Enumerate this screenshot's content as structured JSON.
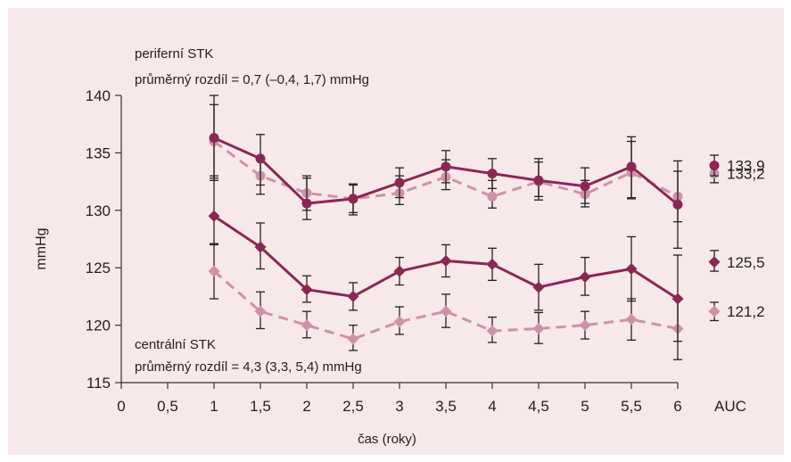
{
  "chart_data": {
    "type": "line",
    "xlabel": "čas (roky)",
    "ylabel": "mmHg",
    "xlim": [
      0,
      6
    ],
    "ylim": [
      115,
      140
    ],
    "x_ticks": [
      0,
      0.5,
      1,
      1.5,
      2,
      2.5,
      3,
      3.5,
      4,
      4.5,
      5,
      5.5,
      6
    ],
    "x_tick_labels": [
      "0",
      "0,5",
      "1",
      "1,5",
      "2",
      "2,5",
      "3",
      "3,5",
      "4",
      "4,5",
      "5",
      "5,5",
      "6"
    ],
    "extra_tick_label": "AUC",
    "y_ticks": [
      115,
      120,
      125,
      130,
      135,
      140
    ],
    "y_tick_labels": [
      "115",
      "120",
      "125",
      "130",
      "135",
      "140"
    ],
    "grid": false,
    "colors": {
      "dark": "#8c2655",
      "light": "#cd92a8",
      "background": "#f7e8ea"
    },
    "annotations": {
      "peripheral_title": "periferní STK",
      "peripheral_diff": "průměrný rozdíl = 0,7 (–0,4, 1,7) mmHg",
      "central_title": "centrální STK",
      "central_diff": "průměrný rozdíl = 4,3 (3,3, 5,4) mmHg"
    },
    "x": [
      1,
      1.5,
      2,
      2.5,
      3,
      3.5,
      4,
      4.5,
      5,
      5.5,
      6
    ],
    "series": [
      {
        "group": "periferní STK",
        "style": "solid",
        "marker": "circle",
        "color": "#8c2655",
        "values": [
          136.3,
          134.5,
          130.6,
          131.0,
          132.4,
          133.8,
          133.2,
          132.6,
          132.1,
          133.8,
          130.5
        ],
        "err_low": [
          132.6,
          132.2,
          129.2,
          129.6,
          131.1,
          132.4,
          131.9,
          130.9,
          130.6,
          131.1,
          126.7
        ],
        "err_high": [
          140.0,
          136.6,
          132.8,
          132.3,
          133.7,
          135.2,
          134.5,
          134.5,
          133.7,
          136.4,
          134.3
        ],
        "auc_value": 133.9,
        "auc_label": "133,9",
        "auc_err": [
          133.0,
          134.8
        ]
      },
      {
        "group": "periferní STK",
        "style": "dashed",
        "marker": "circle",
        "color": "#cd92a8",
        "values": [
          136.0,
          133.0,
          131.5,
          131.0,
          131.5,
          132.9,
          131.2,
          132.5,
          131.4,
          133.3,
          131.2
        ],
        "err_low": [
          132.8,
          131.4,
          130.0,
          129.8,
          130.5,
          131.8,
          130.2,
          131.2,
          130.3,
          131.0,
          129.0
        ],
        "err_high": [
          139.2,
          134.6,
          133.0,
          132.2,
          133.0,
          134.4,
          132.6,
          134.2,
          132.6,
          136.0,
          133.4
        ],
        "auc_value": 133.2,
        "auc_label": "133,2",
        "auc_err": [
          132.4,
          134.0
        ]
      },
      {
        "group": "centrální STK",
        "style": "solid",
        "marker": "diamond",
        "color": "#8c2655",
        "values": [
          129.5,
          126.8,
          123.1,
          122.5,
          124.7,
          125.6,
          125.3,
          123.3,
          124.2,
          124.9,
          122.3
        ],
        "err_low": [
          127.0,
          124.9,
          122.0,
          121.3,
          123.5,
          124.2,
          123.9,
          121.3,
          122.6,
          122.1,
          118.6
        ],
        "err_high": [
          133.0,
          128.9,
          124.3,
          123.7,
          125.9,
          127.0,
          126.7,
          125.3,
          125.9,
          127.7,
          126.1
        ],
        "auc_value": 125.5,
        "auc_label": "125,5",
        "auc_err": [
          124.7,
          126.5
        ]
      },
      {
        "group": "centrální STK",
        "style": "dashed",
        "marker": "diamond",
        "color": "#cd92a8",
        "values": [
          124.7,
          121.2,
          120.0,
          118.8,
          120.3,
          121.2,
          119.5,
          119.7,
          120.0,
          120.5,
          119.7
        ],
        "err_low": [
          122.3,
          119.7,
          118.9,
          117.8,
          119.2,
          119.8,
          118.5,
          118.4,
          118.8,
          118.7,
          117.0
        ],
        "err_high": [
          127.1,
          122.9,
          121.2,
          120.0,
          121.6,
          122.7,
          120.7,
          121.1,
          121.2,
          122.3,
          122.3
        ],
        "auc_value": 121.2,
        "auc_label": "121,2",
        "auc_err": [
          120.4,
          122.0
        ]
      }
    ]
  }
}
